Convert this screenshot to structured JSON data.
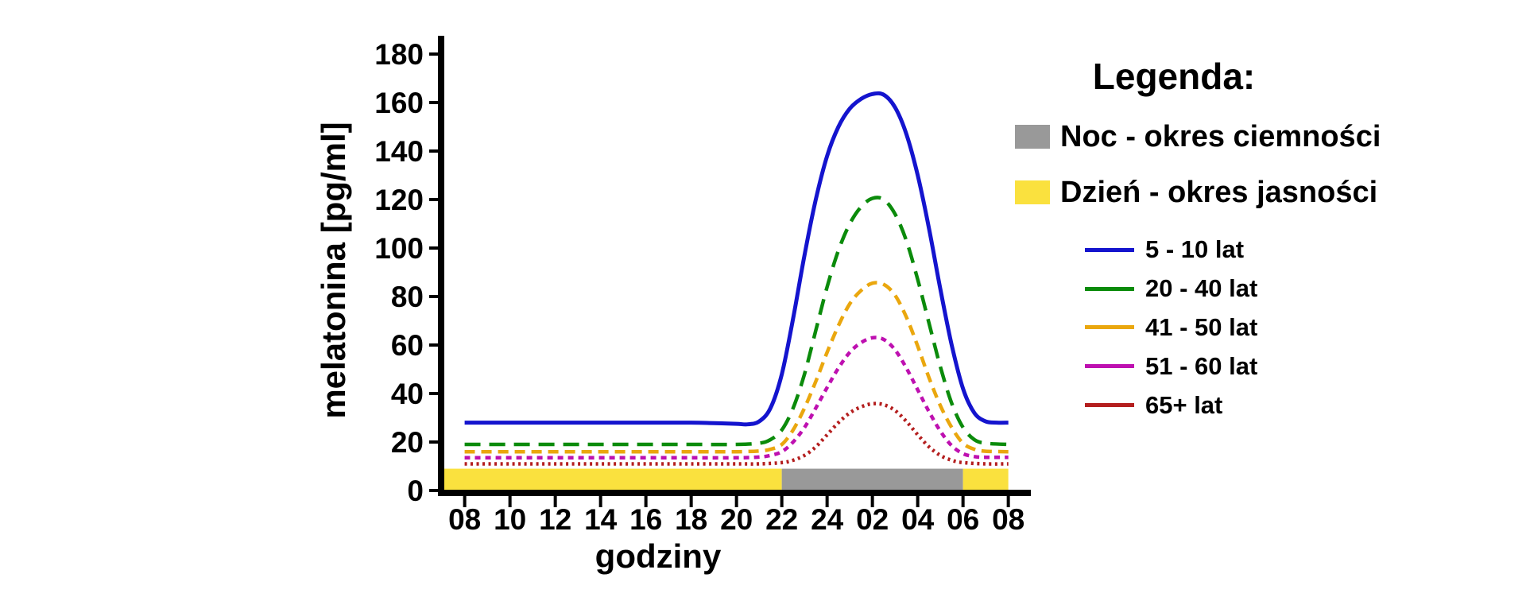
{
  "page": {
    "background": "#ffffff"
  },
  "legend": {
    "title": "Legenda:",
    "swatches": [
      {
        "id": "noc",
        "label": "Noc - okres ciemności",
        "color": "#999999"
      },
      {
        "id": "dzien",
        "label": "Dzień - okres jasności",
        "color": "#FAE13E"
      }
    ]
  },
  "chart_data": {
    "type": "line",
    "title": "",
    "xlabel": "godziny",
    "ylabel": "melatonina [pg/ml]",
    "ylim": [
      0,
      190
    ],
    "grid": false,
    "legend_position": "right",
    "axis_color": "#000000",
    "yticks": [
      0,
      20,
      40,
      60,
      80,
      100,
      120,
      140,
      160,
      180
    ],
    "x_tick_hours": [
      8,
      10,
      12,
      14,
      16,
      18,
      20,
      22,
      24,
      26,
      28,
      30,
      32
    ],
    "x_tick_labels": [
      "08",
      "10",
      "12",
      "14",
      "16",
      "18",
      "20",
      "22",
      "24",
      "02",
      "04",
      "06",
      "08"
    ],
    "band_top_value": 9,
    "bands": [
      {
        "id": "dzien-1",
        "label": "Dzień - okres jasności",
        "color": "#FAE13E",
        "from_hour": 7.1,
        "to_hour": 22
      },
      {
        "id": "noc",
        "label": "Noc - okres ciemności",
        "color": "#999999",
        "from_hour": 22,
        "to_hour": 30
      },
      {
        "id": "dzien-2",
        "label": "Dzień - okres jasności",
        "color": "#FAE13E",
        "from_hour": 30,
        "to_hour": 32
      }
    ],
    "series": [
      {
        "id": "age-5-10",
        "name": "5 - 10 lat",
        "color": "#1414CE",
        "dash": null,
        "width": 5,
        "baseline": 28,
        "peak": 163.5,
        "peak_hour_label": "02",
        "points": [
          [
            8,
            28
          ],
          [
            10,
            28
          ],
          [
            12,
            28
          ],
          [
            14,
            28
          ],
          [
            16,
            28
          ],
          [
            18,
            28
          ],
          [
            19,
            27.8
          ],
          [
            20,
            27.5
          ],
          [
            20.5,
            27.3
          ],
          [
            21,
            28.5
          ],
          [
            21.5,
            34
          ],
          [
            22,
            48
          ],
          [
            22.5,
            71
          ],
          [
            23,
            97
          ],
          [
            23.5,
            120
          ],
          [
            24,
            138
          ],
          [
            24.5,
            150
          ],
          [
            25,
            157.5
          ],
          [
            25.5,
            161.5
          ],
          [
            26,
            163.5
          ],
          [
            26.5,
            163.2
          ],
          [
            27,
            158
          ],
          [
            27.5,
            147
          ],
          [
            28,
            130
          ],
          [
            28.5,
            108
          ],
          [
            29,
            83
          ],
          [
            29.5,
            60
          ],
          [
            30,
            42
          ],
          [
            30.5,
            32
          ],
          [
            31,
            28.5
          ],
          [
            31.5,
            28
          ],
          [
            32,
            28
          ]
        ]
      },
      {
        "id": "age-20-40",
        "name": "20 - 40 lat",
        "color": "#0B8B0B",
        "dash": "20 11",
        "width": 4.5,
        "baseline": 19,
        "peak": 120.5,
        "peak_hour_label": "02",
        "points": [
          [
            8,
            19
          ],
          [
            10,
            19
          ],
          [
            12,
            19
          ],
          [
            14,
            19
          ],
          [
            16,
            19
          ],
          [
            18,
            19
          ],
          [
            20,
            19
          ],
          [
            21,
            19.5
          ],
          [
            21.5,
            21
          ],
          [
            22,
            25
          ],
          [
            22.5,
            34
          ],
          [
            23,
            48
          ],
          [
            23.5,
            66
          ],
          [
            24,
            84
          ],
          [
            24.5,
            99
          ],
          [
            25,
            110
          ],
          [
            25.5,
            117
          ],
          [
            26,
            120.5
          ],
          [
            26.5,
            120
          ],
          [
            27,
            114
          ],
          [
            27.5,
            103
          ],
          [
            28,
            87
          ],
          [
            28.5,
            69
          ],
          [
            29,
            51
          ],
          [
            29.5,
            36
          ],
          [
            30,
            26
          ],
          [
            30.5,
            21
          ],
          [
            31,
            19.5
          ],
          [
            32,
            19
          ]
        ]
      },
      {
        "id": "age-41-50",
        "name": "41 - 50 lat",
        "color": "#EAA70E",
        "dash": "13 8",
        "width": 4.5,
        "baseline": 16,
        "peak": 85.5,
        "peak_hour_label": "02",
        "points": [
          [
            8,
            16
          ],
          [
            10,
            16
          ],
          [
            12,
            16
          ],
          [
            14,
            16
          ],
          [
            16,
            16
          ],
          [
            18,
            16
          ],
          [
            20,
            16
          ],
          [
            21,
            16.3
          ],
          [
            21.5,
            17
          ],
          [
            22,
            19
          ],
          [
            22.5,
            25
          ],
          [
            23,
            34
          ],
          [
            23.5,
            45
          ],
          [
            24,
            57
          ],
          [
            24.5,
            68
          ],
          [
            25,
            77
          ],
          [
            25.5,
            82.5
          ],
          [
            26,
            85.5
          ],
          [
            26.5,
            85
          ],
          [
            27,
            80.5
          ],
          [
            27.5,
            71.5
          ],
          [
            28,
            59.5
          ],
          [
            28.5,
            46.5
          ],
          [
            29,
            35
          ],
          [
            29.5,
            26
          ],
          [
            30,
            19.5
          ],
          [
            30.5,
            17
          ],
          [
            31,
            16.2
          ],
          [
            32,
            16
          ]
        ]
      },
      {
        "id": "age-51-60",
        "name": "51 - 60 lat",
        "color": "#BE10B0",
        "dash": "7 6",
        "width": 4.5,
        "baseline": 13.5,
        "peak": 63,
        "peak_hour_label": "02",
        "points": [
          [
            8,
            13.5
          ],
          [
            10,
            13.5
          ],
          [
            12,
            13.5
          ],
          [
            14,
            13.5
          ],
          [
            16,
            13.5
          ],
          [
            18,
            13.5
          ],
          [
            20,
            13.5
          ],
          [
            21,
            13.8
          ],
          [
            21.5,
            14.5
          ],
          [
            22,
            16
          ],
          [
            22.5,
            20
          ],
          [
            23,
            26
          ],
          [
            23.5,
            34
          ],
          [
            24,
            42.5
          ],
          [
            24.5,
            50.5
          ],
          [
            25,
            57
          ],
          [
            25.5,
            61
          ],
          [
            26,
            63
          ],
          [
            26.5,
            62.3
          ],
          [
            27,
            58
          ],
          [
            27.5,
            50.5
          ],
          [
            28,
            41.5
          ],
          [
            28.5,
            32.5
          ],
          [
            29,
            24.5
          ],
          [
            29.5,
            18.5
          ],
          [
            30,
            15.2
          ],
          [
            30.5,
            14
          ],
          [
            31,
            13.7
          ],
          [
            32,
            13.7
          ]
        ]
      },
      {
        "id": "age-65-plus",
        "name": "65+ lat",
        "color": "#B41E1E",
        "dash": "3 4.5",
        "width": 4.5,
        "baseline": 11,
        "peak": 35.8,
        "peak_hour_label": "02",
        "points": [
          [
            8,
            11
          ],
          [
            10,
            11
          ],
          [
            12,
            11
          ],
          [
            14,
            11
          ],
          [
            16,
            11
          ],
          [
            18,
            11
          ],
          [
            20,
            11
          ],
          [
            21,
            11
          ],
          [
            22,
            11.5
          ],
          [
            22.5,
            12.5
          ],
          [
            23,
            14.5
          ],
          [
            23.5,
            18
          ],
          [
            24,
            23
          ],
          [
            24.5,
            28
          ],
          [
            25,
            32
          ],
          [
            25.5,
            34.5
          ],
          [
            26,
            35.8
          ],
          [
            26.5,
            35.4
          ],
          [
            27,
            33
          ],
          [
            27.5,
            28.5
          ],
          [
            28,
            23
          ],
          [
            28.5,
            18
          ],
          [
            29,
            14.5
          ],
          [
            29.5,
            12.5
          ],
          [
            30,
            11.5
          ],
          [
            31,
            11
          ],
          [
            32,
            11
          ]
        ]
      }
    ]
  }
}
